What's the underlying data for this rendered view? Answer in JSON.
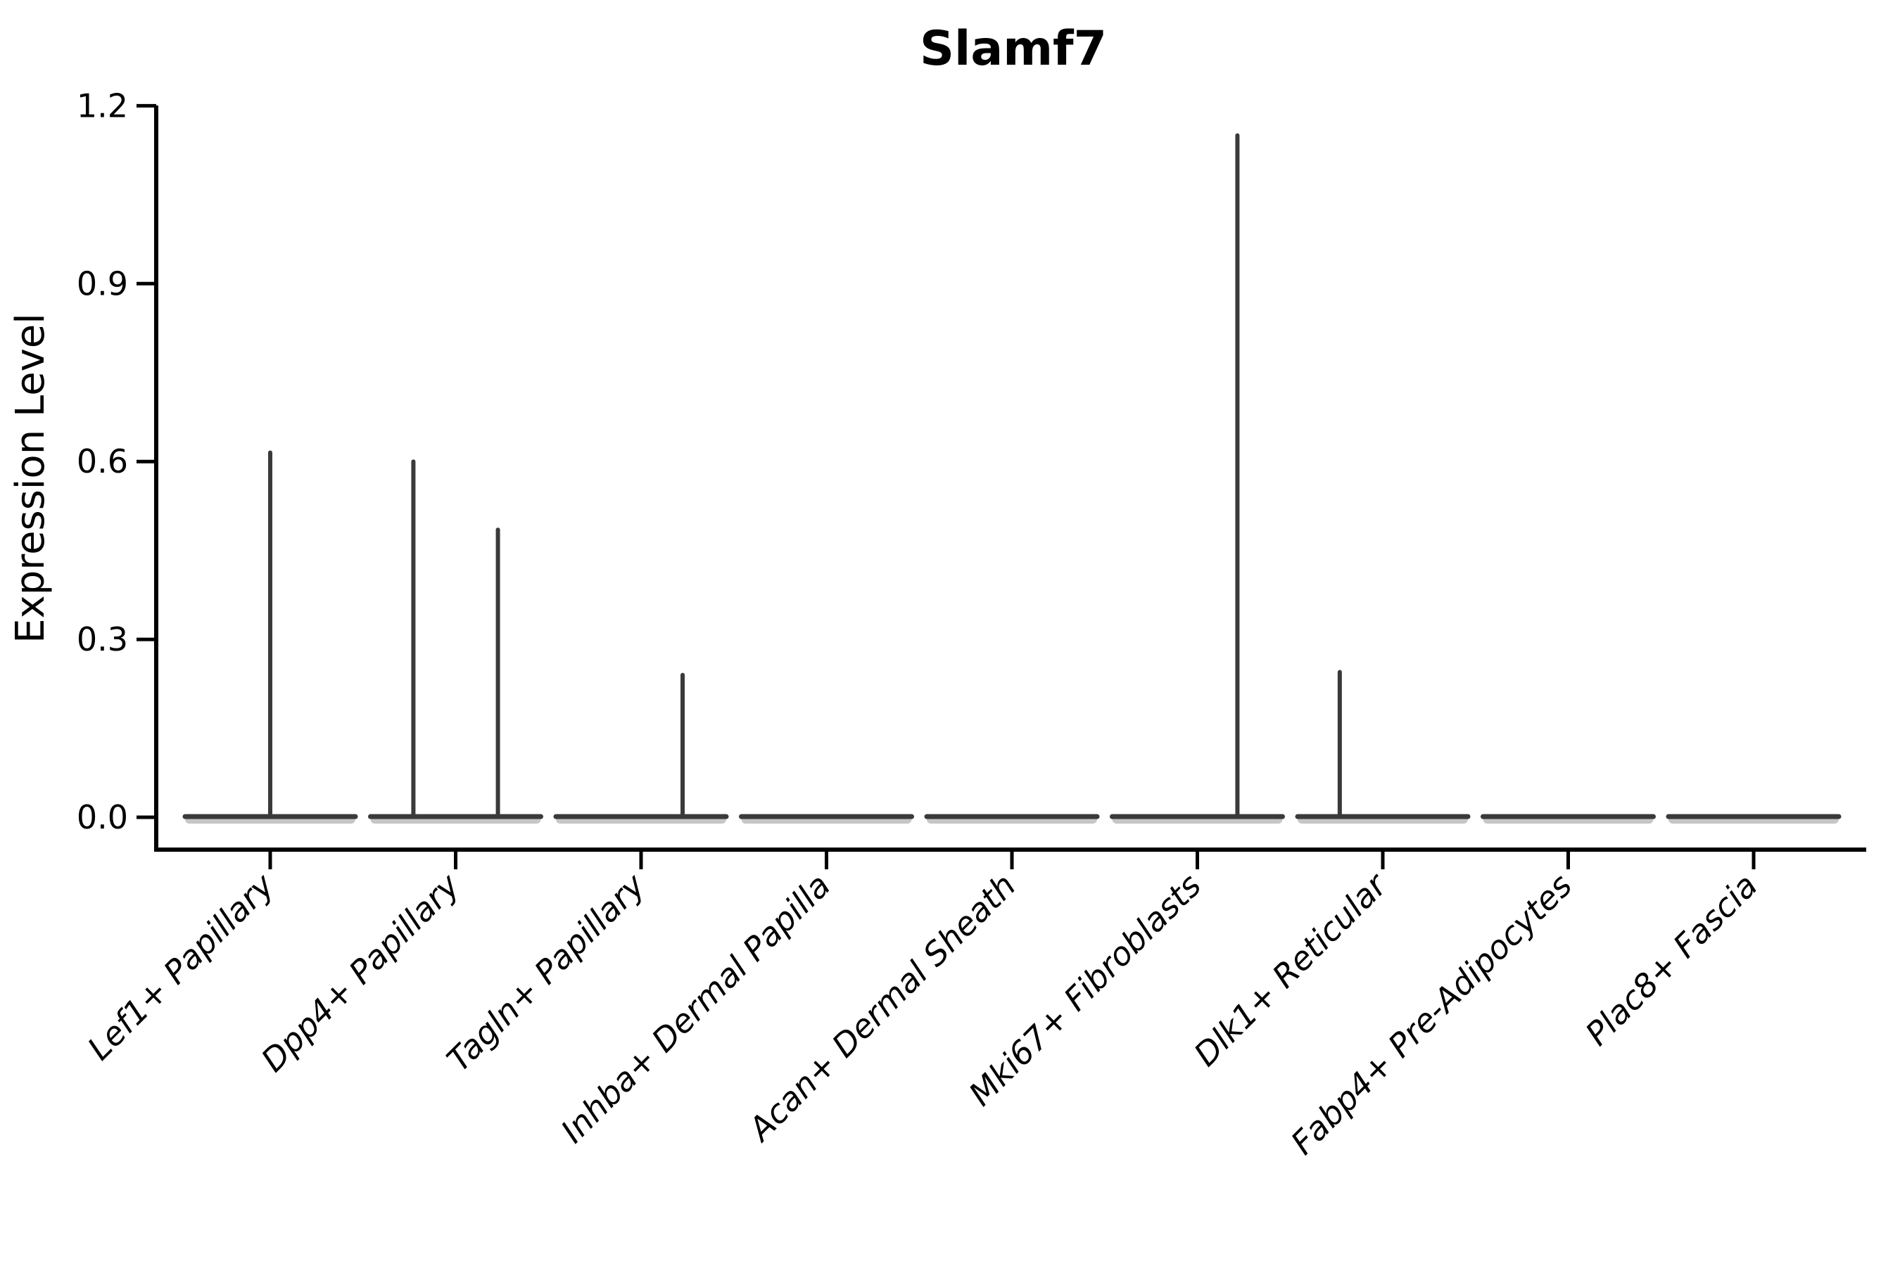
{
  "figure": {
    "title": "Slamf7",
    "y_axis_label": "Expression Level"
  },
  "colors": {
    "violin": "#3a3a3a",
    "violin_fill_fringe": "#c6c6c6",
    "axis": "#000000",
    "text": "#000000",
    "background": "#ffffff"
  },
  "chart_data": {
    "type": "violin",
    "title": "Slamf7",
    "ylabel": "Expression Level",
    "xlabel": "",
    "grid": false,
    "legend": "none",
    "ylim": [
      -0.055,
      1.22
    ],
    "yticks": [
      0.0,
      0.3,
      0.6,
      0.9,
      1.2
    ],
    "ytick_labels": [
      "0.0",
      "0.3",
      "0.6",
      "0.9",
      "1.2"
    ],
    "x_tick_label_style": "italic, rotated 45 degrees",
    "violin_base_halfwidth": 0.46,
    "categories": [
      "Lef1+ Papillary",
      "Dpp4+ Papillary",
      "Tagln+ Papillary",
      "Inhba+ Dermal Papilla",
      "Acan+ Dermal Sheath",
      "Mki67+ Fibroblasts",
      "Dlk1+ Reticular",
      "Fabp4+ Pre-Adipocytes",
      "Plac8+ Fascia"
    ],
    "series": [
      {
        "name": "Lef1+ Papillary",
        "baseline_value": 0,
        "spikes": [
          {
            "x_offset": 0.0,
            "max_expression": 0.615
          }
        ]
      },
      {
        "name": "Dpp4+ Papillary",
        "baseline_value": 0,
        "spikes": [
          {
            "x_offset": -0.228,
            "max_expression": 0.6
          },
          {
            "x_offset": 0.228,
            "max_expression": 0.485
          }
        ]
      },
      {
        "name": "Tagln+ Papillary",
        "baseline_value": 0,
        "spikes": [
          {
            "x_offset": 0.224,
            "max_expression": 0.24
          }
        ]
      },
      {
        "name": "Inhba+ Dermal Papilla",
        "baseline_value": 0,
        "spikes": []
      },
      {
        "name": "Acan+ Dermal Sheath",
        "baseline_value": 0,
        "spikes": []
      },
      {
        "name": "Mki67+ Fibroblasts",
        "baseline_value": 0,
        "spikes": [
          {
            "x_offset": 0.216,
            "max_expression": 1.15
          }
        ]
      },
      {
        "name": "Dlk1+ Reticular",
        "baseline_value": 0,
        "spikes": [
          {
            "x_offset": -0.232,
            "max_expression": 0.245
          }
        ]
      },
      {
        "name": "Fabp4+ Pre-Adipocytes",
        "baseline_value": 0,
        "spikes": []
      },
      {
        "name": "Plac8+ Fascia",
        "baseline_value": 0,
        "spikes": []
      }
    ]
  }
}
